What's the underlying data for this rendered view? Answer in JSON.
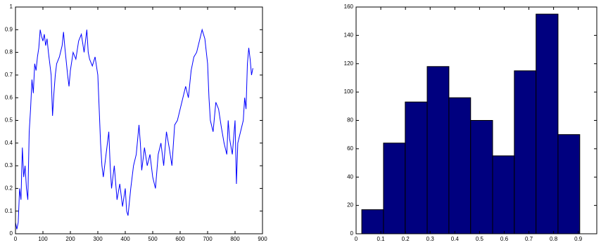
{
  "chart_data": [
    {
      "type": "line",
      "color": "#0000ff",
      "x": [
        0,
        5,
        10,
        15,
        20,
        25,
        30,
        35,
        40,
        45,
        50,
        55,
        60,
        65,
        70,
        75,
        80,
        85,
        90,
        95,
        100,
        105,
        110,
        115,
        120,
        125,
        130,
        135,
        140,
        145,
        150,
        160,
        170,
        175,
        180,
        190,
        195,
        200,
        210,
        220,
        230,
        240,
        250,
        260,
        265,
        270,
        280,
        290,
        300,
        305,
        310,
        315,
        320,
        330,
        340,
        345,
        350,
        360,
        370,
        380,
        390,
        400,
        405,
        410,
        420,
        430,
        440,
        450,
        455,
        460,
        470,
        480,
        490,
        500,
        510,
        520,
        530,
        540,
        550,
        560,
        570,
        580,
        590,
        600,
        610,
        620,
        630,
        640,
        650,
        660,
        670,
        680,
        690,
        700,
        705,
        710,
        720,
        730,
        740,
        750,
        760,
        770,
        775,
        780,
        790,
        800,
        805,
        810,
        820,
        830,
        835,
        840,
        845,
        850,
        855,
        860,
        865
      ],
      "values": [
        0.05,
        0.02,
        0.05,
        0.2,
        0.15,
        0.38,
        0.25,
        0.3,
        0.2,
        0.15,
        0.45,
        0.55,
        0.68,
        0.62,
        0.75,
        0.72,
        0.78,
        0.82,
        0.9,
        0.87,
        0.85,
        0.88,
        0.83,
        0.86,
        0.8,
        0.75,
        0.7,
        0.52,
        0.62,
        0.7,
        0.75,
        0.78,
        0.83,
        0.89,
        0.82,
        0.7,
        0.65,
        0.72,
        0.8,
        0.77,
        0.85,
        0.88,
        0.8,
        0.9,
        0.8,
        0.77,
        0.74,
        0.78,
        0.7,
        0.55,
        0.4,
        0.3,
        0.25,
        0.35,
        0.45,
        0.3,
        0.2,
        0.3,
        0.15,
        0.22,
        0.12,
        0.2,
        0.1,
        0.08,
        0.2,
        0.3,
        0.35,
        0.48,
        0.4,
        0.28,
        0.38,
        0.3,
        0.35,
        0.25,
        0.2,
        0.35,
        0.4,
        0.3,
        0.45,
        0.38,
        0.3,
        0.48,
        0.5,
        0.55,
        0.6,
        0.65,
        0.6,
        0.72,
        0.78,
        0.8,
        0.85,
        0.9,
        0.86,
        0.75,
        0.6,
        0.5,
        0.45,
        0.58,
        0.55,
        0.47,
        0.4,
        0.35,
        0.5,
        0.42,
        0.35,
        0.5,
        0.22,
        0.4,
        0.45,
        0.5,
        0.6,
        0.55,
        0.75,
        0.82,
        0.77,
        0.7,
        0.73
      ],
      "xlim": [
        0,
        900
      ],
      "xticks": [
        0,
        100,
        200,
        300,
        400,
        500,
        600,
        700,
        800,
        900
      ],
      "ylim": [
        0,
        1
      ],
      "yticks": [
        0,
        0.1,
        0.2,
        0.3,
        0.4,
        0.5,
        0.6,
        0.7,
        0.8,
        0.9,
        1
      ]
    },
    {
      "type": "histogram",
      "color": "#00007f",
      "bins": [
        0.023,
        0.111,
        0.199,
        0.288,
        0.376,
        0.464,
        0.553,
        0.641,
        0.729,
        0.818,
        0.906
      ],
      "values": [
        17,
        64,
        93,
        118,
        96,
        80,
        55,
        115,
        155,
        70
      ],
      "xlim": [
        0,
        0.975
      ],
      "xticks": [
        0,
        0.1,
        0.2,
        0.3,
        0.4,
        0.5,
        0.6,
        0.7,
        0.8,
        0.9
      ],
      "ylim": [
        0,
        160
      ],
      "yticks": [
        0,
        20,
        40,
        60,
        80,
        100,
        120,
        140,
        160
      ]
    }
  ]
}
